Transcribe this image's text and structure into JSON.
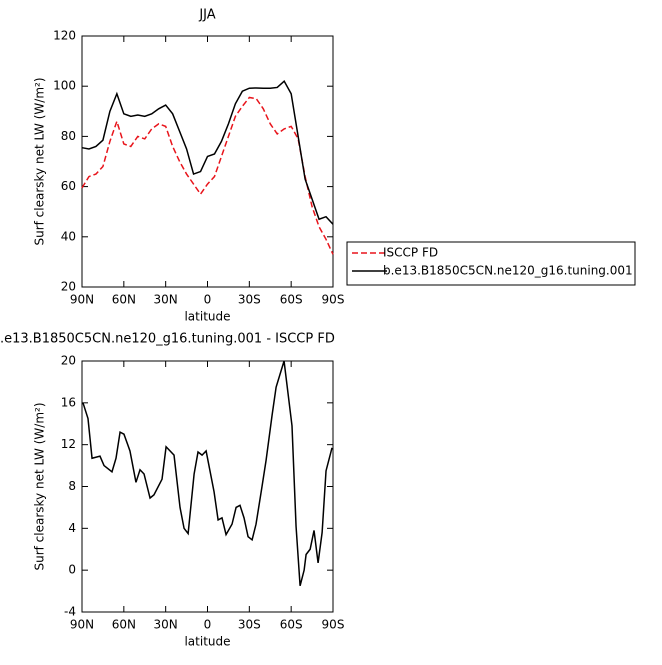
{
  "chart_data": [
    {
      "type": "line",
      "title": "JJA",
      "ylabel": "Surf clearsky net LW (W/m²)",
      "xlabel": "latitude",
      "x": [
        90,
        85,
        80,
        75,
        70,
        65,
        60,
        55,
        50,
        45,
        40,
        35,
        30,
        25,
        20,
        15,
        10,
        5,
        0,
        -5,
        -10,
        -15,
        -20,
        -25,
        -30,
        -35,
        -40,
        -45,
        -50,
        -55,
        -60,
        -65,
        -70,
        -75,
        -80,
        -85,
        -90
      ],
      "series": [
        {
          "name": "ISCCP FD",
          "color": "#e8141b",
          "dash": true,
          "values": [
            59.5,
            64,
            65,
            68,
            78,
            86,
            77,
            76,
            80,
            79,
            83,
            85,
            84,
            76,
            70,
            65,
            61,
            57,
            61,
            64,
            72,
            80,
            88,
            92,
            95.5,
            95,
            91,
            85,
            81,
            83,
            84,
            79,
            64,
            52,
            44,
            39,
            33
          ]
        },
        {
          "name": "b.e13.B1850C5CN.ne120_g16.tuning.001",
          "color": "#000000",
          "dash": false,
          "values": [
            75.5,
            75,
            76,
            78.5,
            90,
            97,
            89,
            88,
            88.5,
            88,
            89,
            91,
            92.5,
            89,
            82,
            75,
            65,
            66,
            72,
            73,
            78,
            85,
            93,
            98,
            99.2,
            99.3,
            99.2,
            99.2,
            99.5,
            102,
            97,
            80,
            63,
            55,
            47,
            48,
            45
          ]
        }
      ],
      "xlim": [
        90,
        -90
      ],
      "xticks": [
        {
          "value": 90,
          "label": "90N"
        },
        {
          "value": 60,
          "label": "60N"
        },
        {
          "value": 30,
          "label": "30N"
        },
        0,
        {
          "value": -30,
          "label": "30S"
        },
        {
          "value": -60,
          "label": "60S"
        },
        {
          "value": -90,
          "label": "90S"
        }
      ],
      "ylim": [
        20,
        120
      ],
      "yticks": [
        20,
        40,
        60,
        80,
        100,
        120
      ],
      "legend": "right"
    },
    {
      "type": "line",
      "title": ".e13.B1850C5CN.ne120_g16.tuning.001 - ISCCP FD",
      "ylabel": "Surf clearsky net LW (W/m²)",
      "xlabel": "latitude",
      "x": [
        89.3,
        85.7,
        82.8,
        77.1,
        74.2,
        68.5,
        65.6,
        62.7,
        59.9,
        55.6,
        51.3,
        48.4,
        45.5,
        41.2,
        38.4,
        32.6,
        29.7,
        24.0,
        19.7,
        16.8,
        13.9,
        9.6,
        6.8,
        3.9,
        1.0,
        -4.7,
        -7.6,
        -10.4,
        -13.3,
        -17.6,
        -20.5,
        -23.3,
        -26.2,
        -29.1,
        -32.0,
        -34.8,
        -39.1,
        -42.0,
        -46.3,
        -49.2,
        -54.9,
        -60.6,
        -63.5,
        -66.4,
        -69.3,
        -70.7,
        -73.6,
        -76.4,
        -79.3,
        -82.2,
        -85.0,
        -89.3
      ],
      "series": [
        {
          "color": "#000000",
          "dash": false,
          "values": [
            16,
            14.5,
            10.7,
            10.9,
            10,
            9.4,
            10.7,
            13.2,
            13,
            11.4,
            8.4,
            9.6,
            9.2,
            6.9,
            7.2,
            8.7,
            11.8,
            11,
            6,
            4,
            3.5,
            9.2,
            11.3,
            11,
            11.4,
            7.5,
            4.8,
            5,
            3.4,
            4.4,
            6,
            6.2,
            5,
            3.2,
            2.9,
            4.4,
            8,
            10.5,
            14.8,
            17.5,
            20,
            13.8,
            4.2,
            -1.5,
            0,
            1.5,
            2,
            3.8,
            0.7,
            3.6,
            9.5,
            11.7
          ]
        }
      ],
      "xlim": [
        90,
        -90
      ],
      "xticks": [
        {
          "value": 90,
          "label": "90N"
        },
        {
          "value": 60,
          "label": "60N"
        },
        {
          "value": 30,
          "label": "30N"
        },
        0,
        {
          "value": -30,
          "label": "30S"
        },
        {
          "value": -60,
          "label": "60S"
        },
        {
          "value": -90,
          "label": "90S"
        }
      ],
      "ylim": [
        -4,
        20
      ],
      "yticks": [
        -4,
        0,
        4,
        8,
        12,
        16,
        20
      ]
    }
  ]
}
